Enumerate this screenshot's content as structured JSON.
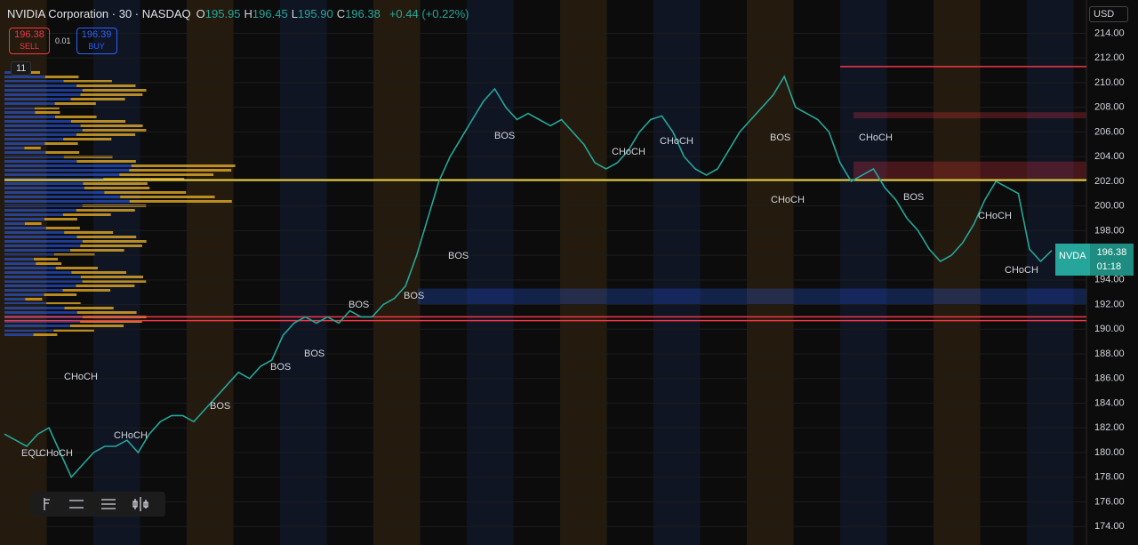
{
  "header": {
    "symbol": "NVIDIA Corporation · 30 · NASDAQ",
    "ohlc": [
      {
        "key": "O",
        "value": "195.95"
      },
      {
        "key": "H",
        "value": "196.45"
      },
      {
        "key": "L",
        "value": "195.90"
      },
      {
        "key": "C",
        "value": "196.38"
      }
    ],
    "change": "+0.44 (+0.22%)"
  },
  "trade": {
    "sell_price": "196.38",
    "sell_label": "SELL",
    "spread": "0.01",
    "buy_price": "196.39",
    "buy_label": "BUY"
  },
  "indicators_count": "11",
  "currency": "USD",
  "price_tag": {
    "symbol": "NVDA",
    "price": "196.38",
    "timer": "01:18"
  },
  "annotations": [
    "CHoCH",
    "EQL",
    "CHoCH",
    "CHoCH",
    "BOS",
    "BOS",
    "BOS",
    "BOS",
    "BOS",
    "BOS",
    "BOS",
    "CHoCH",
    "CHoCH",
    "BOS",
    "CHoCH",
    "CHoCH",
    "BOS",
    "CHoCH",
    "CHoCH"
  ],
  "chart_data": {
    "type": "line",
    "series": [
      {
        "name": "NVDA",
        "color": "#26a69a",
        "values": [
          181.5,
          181,
          180.5,
          181.5,
          182,
          180,
          178,
          179,
          180,
          180.5,
          180.5,
          181,
          180,
          181.5,
          182.5,
          183,
          183,
          182.5,
          183.5,
          184.5,
          185.5,
          186.5,
          186,
          187,
          187.5,
          189.5,
          190.5,
          191,
          190.5,
          191,
          190.5,
          191.5,
          191,
          191,
          192,
          192.5,
          193.5,
          196,
          199,
          202,
          204,
          205.5,
          207,
          208.5,
          209.5,
          208,
          207,
          207.5,
          207,
          206.5,
          207,
          206,
          205,
          203.5,
          203,
          203.5,
          204.5,
          206,
          207,
          207.3,
          206,
          204,
          203,
          202.5,
          203,
          204.5,
          206,
          207,
          208,
          209,
          210.5,
          208,
          207.5,
          207,
          206,
          203.5,
          202,
          202.5,
          203,
          201.5,
          200.5,
          199,
          198,
          196.5,
          195.5,
          196,
          197,
          198.5,
          200.5,
          202,
          201.5,
          201,
          196.5,
          195.5,
          196.38
        ]
      }
    ],
    "ylim": [
      172.5,
      216.7
    ],
    "yticks": [
      {
        "value": 174,
        "label": "174.00"
      },
      {
        "value": 176,
        "label": "176.00"
      },
      {
        "value": 178,
        "label": "178.00"
      },
      {
        "value": 180,
        "label": "180.00"
      },
      {
        "value": 182,
        "label": "182.00"
      },
      {
        "value": 184,
        "label": "184.00"
      },
      {
        "value": 186,
        "label": "186.00"
      },
      {
        "value": 188,
        "label": "188.00"
      },
      {
        "value": 190,
        "label": "190.00"
      },
      {
        "value": 192,
        "label": "192.00"
      },
      {
        "value": 194,
        "label": "194.00"
      },
      {
        "value": 196,
        "label": "196.00"
      },
      {
        "value": 198,
        "label": "198.00"
      },
      {
        "value": 200,
        "label": "200.00"
      },
      {
        "value": 202,
        "label": "202.00"
      },
      {
        "value": 204,
        "label": "204.00"
      },
      {
        "value": 206,
        "label": "206.00"
      },
      {
        "value": 208,
        "label": "208.00"
      },
      {
        "value": 210,
        "label": "210.00"
      },
      {
        "value": 212,
        "label": "212.00"
      },
      {
        "value": 214,
        "label": "214.00"
      }
    ],
    "levels": [
      {
        "value": 202.1,
        "color": "#f5d742"
      },
      {
        "value": 191.0,
        "color": "#f23645"
      },
      {
        "value": 190.7,
        "color": "#f23645"
      },
      {
        "value": 211.3,
        "color": "#f23645"
      }
    ],
    "zones": [
      {
        "from": 193.3,
        "to": 192.0,
        "color": "#2962ff"
      },
      {
        "from": 203.6,
        "to": 202.2,
        "color": "#f23645"
      },
      {
        "from": 207.6,
        "to": 207.1,
        "color": "#f23645"
      }
    ]
  }
}
